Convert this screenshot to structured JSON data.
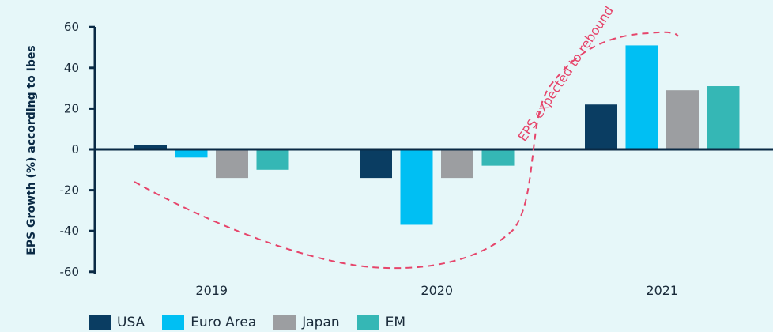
{
  "chart_data": {
    "type": "bar",
    "ylabel": "EPS Growth (%) according to Ibes",
    "ylim": [
      -60,
      60
    ],
    "yticks": [
      60,
      40,
      20,
      0,
      -20,
      -40,
      -60
    ],
    "categories": [
      "2019",
      "2020",
      "2021"
    ],
    "series": [
      {
        "name": "USA",
        "color": "#0a3d62",
        "values": [
          2,
          -14,
          22
        ]
      },
      {
        "name": "Euro Area",
        "color": "#00bff3",
        "values": [
          -4,
          -37,
          51
        ]
      },
      {
        "name": "Japan",
        "color": "#9c9ea1",
        "values": [
          -14,
          -14,
          29
        ]
      },
      {
        "name": "EM",
        "color": "#35b7b5",
        "values": [
          -10,
          -8,
          31
        ]
      }
    ],
    "annotation": "EPS expected to rebound",
    "annotation_color": "#e6456b",
    "axis_color": "#0a2a45",
    "grid": false,
    "legend_position": "bottom-left"
  }
}
